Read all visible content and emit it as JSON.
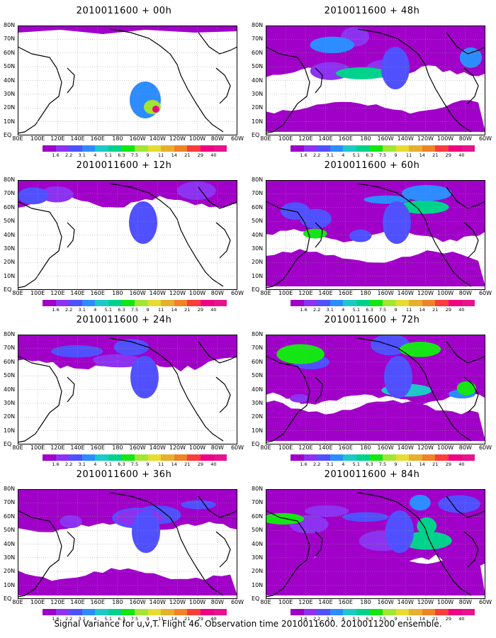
{
  "panels": [
    {
      "title": "2010011600 + 00h",
      "level": 0
    },
    {
      "title": "2010011600 + 48h",
      "level": 4
    },
    {
      "title": "2010011600 + 12h",
      "level": 1
    },
    {
      "title": "2010011600 + 60h",
      "level": 5
    },
    {
      "title": "2010011600 + 24h",
      "level": 2
    },
    {
      "title": "2010011600 + 72h",
      "level": 6
    },
    {
      "title": "2010011600 + 36h",
      "level": 3
    },
    {
      "title": "2010011600 + 84h",
      "level": 7
    }
  ],
  "lat_labels": [
    "80N",
    "70N",
    "60N",
    "50N",
    "40N",
    "30N",
    "20N",
    "10N",
    "EQ"
  ],
  "lon_labels": [
    "80E",
    "100E",
    "120E",
    "140E",
    "160E",
    "180",
    "160W",
    "140W",
    "120W",
    "100W",
    "80W",
    "60W"
  ],
  "colorbar": {
    "ticks": [
      "1.6",
      "2.2",
      "3.1",
      "4",
      "5.1",
      "6.3",
      "7.5",
      "9",
      "11",
      "14",
      "21",
      "29",
      "40"
    ],
    "colors": [
      "#a000c8",
      "#8c32f0",
      "#5050ff",
      "#2d8cff",
      "#1ec8c8",
      "#00d28c",
      "#14e614",
      "#a0e632",
      "#e6dc32",
      "#e6af2d",
      "#f08228",
      "#fa3c3c",
      "#f00082",
      "#e6138c"
    ]
  },
  "footer": "Signal Variance for u,v,T. Flight 46. Observation time 2010011600. 2010011200 ensemble."
}
